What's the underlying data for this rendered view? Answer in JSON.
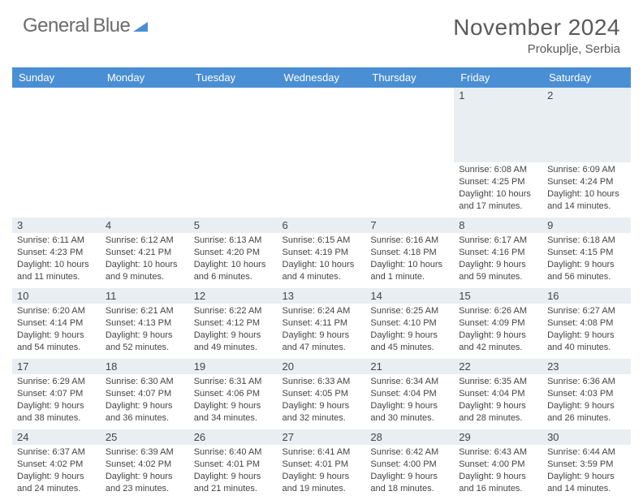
{
  "brand": {
    "line1": "General",
    "line2": "Blue",
    "accent": "#4a8fd4"
  },
  "header": {
    "title": "November 2024",
    "location": "Prokuplje, Serbia"
  },
  "calendar": {
    "weekdays": [
      "Sunday",
      "Monday",
      "Tuesday",
      "Wednesday",
      "Thursday",
      "Friday",
      "Saturday"
    ],
    "header_bg": "#4a8fd4",
    "header_fg": "#ffffff",
    "daynum_bg": "#e9eef3",
    "text_color": "#444444",
    "weeks": [
      [
        {
          "blank": true
        },
        {
          "blank": true
        },
        {
          "blank": true
        },
        {
          "blank": true
        },
        {
          "blank": true
        },
        {
          "num": "1",
          "sunrise": "Sunrise: 6:08 AM",
          "sunset": "Sunset: 4:25 PM",
          "daylight": "Daylight: 10 hours and 17 minutes."
        },
        {
          "num": "2",
          "sunrise": "Sunrise: 6:09 AM",
          "sunset": "Sunset: 4:24 PM",
          "daylight": "Daylight: 10 hours and 14 minutes."
        }
      ],
      [
        {
          "num": "3",
          "sunrise": "Sunrise: 6:11 AM",
          "sunset": "Sunset: 4:23 PM",
          "daylight": "Daylight: 10 hours and 11 minutes."
        },
        {
          "num": "4",
          "sunrise": "Sunrise: 6:12 AM",
          "sunset": "Sunset: 4:21 PM",
          "daylight": "Daylight: 10 hours and 9 minutes."
        },
        {
          "num": "5",
          "sunrise": "Sunrise: 6:13 AM",
          "sunset": "Sunset: 4:20 PM",
          "daylight": "Daylight: 10 hours and 6 minutes."
        },
        {
          "num": "6",
          "sunrise": "Sunrise: 6:15 AM",
          "sunset": "Sunset: 4:19 PM",
          "daylight": "Daylight: 10 hours and 4 minutes."
        },
        {
          "num": "7",
          "sunrise": "Sunrise: 6:16 AM",
          "sunset": "Sunset: 4:18 PM",
          "daylight": "Daylight: 10 hours and 1 minute."
        },
        {
          "num": "8",
          "sunrise": "Sunrise: 6:17 AM",
          "sunset": "Sunset: 4:16 PM",
          "daylight": "Daylight: 9 hours and 59 minutes."
        },
        {
          "num": "9",
          "sunrise": "Sunrise: 6:18 AM",
          "sunset": "Sunset: 4:15 PM",
          "daylight": "Daylight: 9 hours and 56 minutes."
        }
      ],
      [
        {
          "num": "10",
          "sunrise": "Sunrise: 6:20 AM",
          "sunset": "Sunset: 4:14 PM",
          "daylight": "Daylight: 9 hours and 54 minutes."
        },
        {
          "num": "11",
          "sunrise": "Sunrise: 6:21 AM",
          "sunset": "Sunset: 4:13 PM",
          "daylight": "Daylight: 9 hours and 52 minutes."
        },
        {
          "num": "12",
          "sunrise": "Sunrise: 6:22 AM",
          "sunset": "Sunset: 4:12 PM",
          "daylight": "Daylight: 9 hours and 49 minutes."
        },
        {
          "num": "13",
          "sunrise": "Sunrise: 6:24 AM",
          "sunset": "Sunset: 4:11 PM",
          "daylight": "Daylight: 9 hours and 47 minutes."
        },
        {
          "num": "14",
          "sunrise": "Sunrise: 6:25 AM",
          "sunset": "Sunset: 4:10 PM",
          "daylight": "Daylight: 9 hours and 45 minutes."
        },
        {
          "num": "15",
          "sunrise": "Sunrise: 6:26 AM",
          "sunset": "Sunset: 4:09 PM",
          "daylight": "Daylight: 9 hours and 42 minutes."
        },
        {
          "num": "16",
          "sunrise": "Sunrise: 6:27 AM",
          "sunset": "Sunset: 4:08 PM",
          "daylight": "Daylight: 9 hours and 40 minutes."
        }
      ],
      [
        {
          "num": "17",
          "sunrise": "Sunrise: 6:29 AM",
          "sunset": "Sunset: 4:07 PM",
          "daylight": "Daylight: 9 hours and 38 minutes."
        },
        {
          "num": "18",
          "sunrise": "Sunrise: 6:30 AM",
          "sunset": "Sunset: 4:07 PM",
          "daylight": "Daylight: 9 hours and 36 minutes."
        },
        {
          "num": "19",
          "sunrise": "Sunrise: 6:31 AM",
          "sunset": "Sunset: 4:06 PM",
          "daylight": "Daylight: 9 hours and 34 minutes."
        },
        {
          "num": "20",
          "sunrise": "Sunrise: 6:33 AM",
          "sunset": "Sunset: 4:05 PM",
          "daylight": "Daylight: 9 hours and 32 minutes."
        },
        {
          "num": "21",
          "sunrise": "Sunrise: 6:34 AM",
          "sunset": "Sunset: 4:04 PM",
          "daylight": "Daylight: 9 hours and 30 minutes."
        },
        {
          "num": "22",
          "sunrise": "Sunrise: 6:35 AM",
          "sunset": "Sunset: 4:04 PM",
          "daylight": "Daylight: 9 hours and 28 minutes."
        },
        {
          "num": "23",
          "sunrise": "Sunrise: 6:36 AM",
          "sunset": "Sunset: 4:03 PM",
          "daylight": "Daylight: 9 hours and 26 minutes."
        }
      ],
      [
        {
          "num": "24",
          "sunrise": "Sunrise: 6:37 AM",
          "sunset": "Sunset: 4:02 PM",
          "daylight": "Daylight: 9 hours and 24 minutes."
        },
        {
          "num": "25",
          "sunrise": "Sunrise: 6:39 AM",
          "sunset": "Sunset: 4:02 PM",
          "daylight": "Daylight: 9 hours and 23 minutes."
        },
        {
          "num": "26",
          "sunrise": "Sunrise: 6:40 AM",
          "sunset": "Sunset: 4:01 PM",
          "daylight": "Daylight: 9 hours and 21 minutes."
        },
        {
          "num": "27",
          "sunrise": "Sunrise: 6:41 AM",
          "sunset": "Sunset: 4:01 PM",
          "daylight": "Daylight: 9 hours and 19 minutes."
        },
        {
          "num": "28",
          "sunrise": "Sunrise: 6:42 AM",
          "sunset": "Sunset: 4:00 PM",
          "daylight": "Daylight: 9 hours and 18 minutes."
        },
        {
          "num": "29",
          "sunrise": "Sunrise: 6:43 AM",
          "sunset": "Sunset: 4:00 PM",
          "daylight": "Daylight: 9 hours and 16 minutes."
        },
        {
          "num": "30",
          "sunrise": "Sunrise: 6:44 AM",
          "sunset": "Sunset: 3:59 PM",
          "daylight": "Daylight: 9 hours and 14 minutes."
        }
      ]
    ]
  }
}
